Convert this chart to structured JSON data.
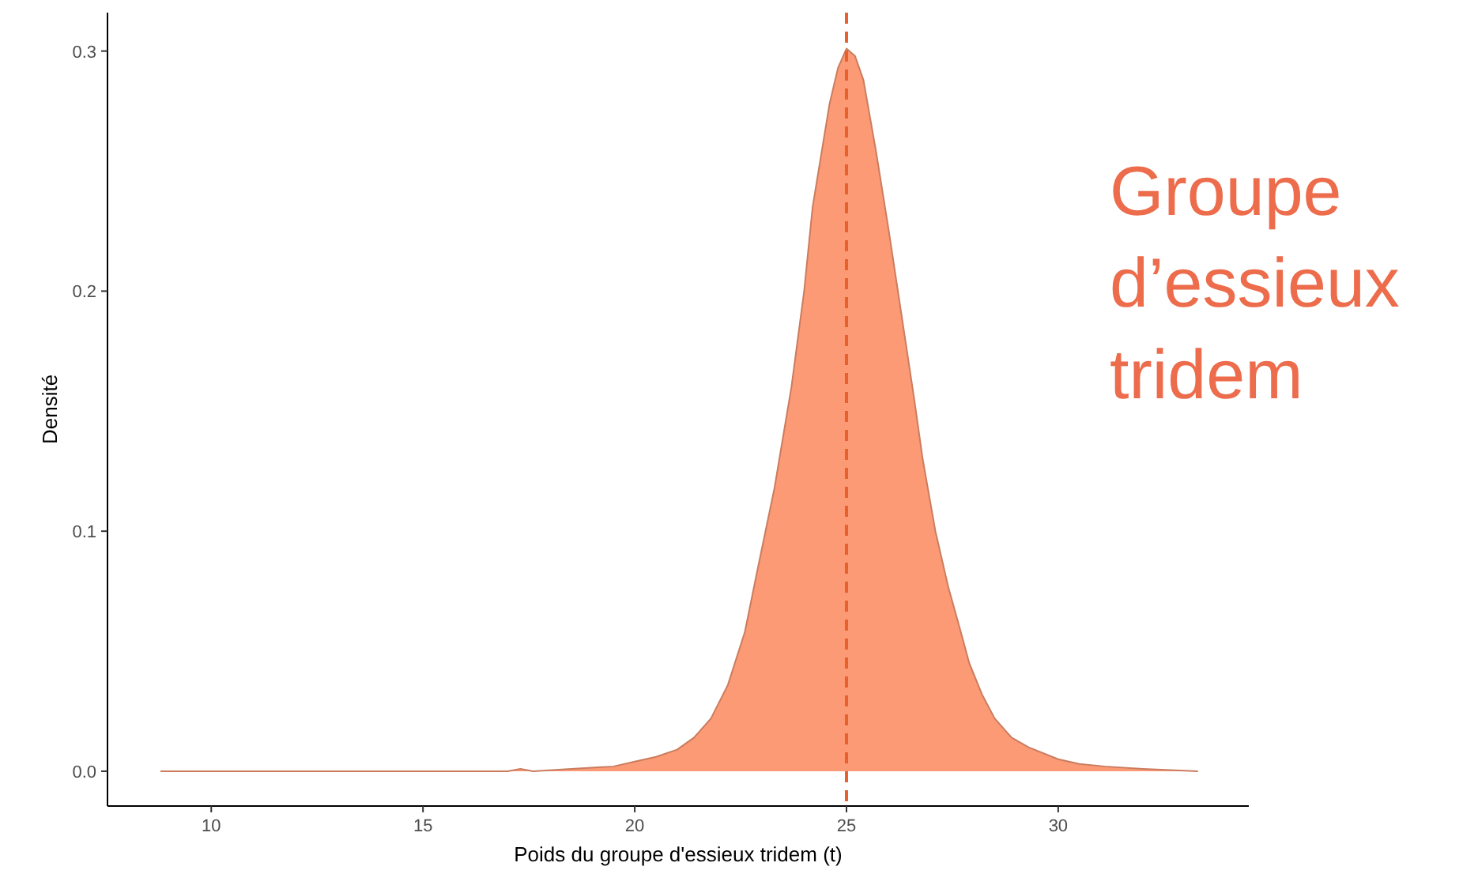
{
  "chart_data": {
    "type": "area",
    "xlabel": "Poids du groupe d'essieux tridem (t)",
    "ylabel": "Densité",
    "annotations": [
      "Groupe d’essieux tridem"
    ],
    "x": [
      8.8,
      12,
      15,
      17,
      17.3,
      17.6,
      18.5,
      19.5,
      20,
      20.5,
      21,
      21.4,
      21.8,
      22.2,
      22.6,
      22.9,
      23.3,
      23.7,
      24,
      24.2,
      24.6,
      24.8,
      25,
      25.2,
      25.4,
      25.7,
      26,
      26.3,
      26.6,
      26.8,
      27.1,
      27.4,
      27.7,
      27.9,
      28.2,
      28.5,
      28.9,
      29.3,
      30,
      30.5,
      31.1,
      32,
      33.3
    ],
    "series": [
      {
        "color": "#fc9a76",
        "values": [
          0,
          0,
          0,
          0,
          0.001,
          0,
          0.001,
          0.002,
          0.004,
          0.006,
          0.009,
          0.014,
          0.022,
          0.036,
          0.058,
          0.084,
          0.118,
          0.16,
          0.2,
          0.235,
          0.278,
          0.293,
          0.301,
          0.298,
          0.288,
          0.258,
          0.225,
          0.19,
          0.155,
          0.13,
          0.1,
          0.077,
          0.058,
          0.045,
          0.032,
          0.022,
          0.014,
          0.01,
          0.005,
          0.003,
          0.002,
          0.001,
          0
        ]
      }
    ],
    "xlim": [
      7.55,
      34.5
    ],
    "ylim": [
      -0.0145,
      0.316
    ],
    "xticks": [
      10,
      15,
      20,
      25,
      30
    ],
    "yticks": [
      {
        "value": 0,
        "label": "0.0"
      },
      0.1,
      0.2,
      0.3
    ],
    "ref_lines": [
      {
        "axis": "x",
        "value": 25,
        "color": "#e8602c",
        "line_style": "dashed"
      }
    ]
  }
}
